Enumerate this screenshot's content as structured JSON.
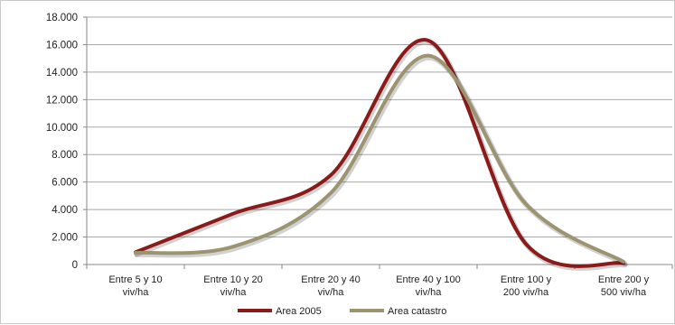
{
  "chart_data": {
    "type": "line",
    "smooth": true,
    "categories": [
      [
        "Entre 5 y 10",
        "viv/ha"
      ],
      [
        "Entre 10 y 20",
        "viv/ha"
      ],
      [
        "Entre 20 y 40",
        "viv/ha"
      ],
      [
        "Entre 40 y 100",
        "viv/ha"
      ],
      [
        "Entre 100 y",
        "200 viv/ha"
      ],
      [
        "Entre 200 y",
        "500 viv/ha"
      ]
    ],
    "series": [
      {
        "name": "Area 2005",
        "color": "#8b1a1a",
        "values": [
          900,
          3700,
          6500,
          16300,
          1500,
          100
        ]
      },
      {
        "name": "Area catastro",
        "color": "#9c9470",
        "values": [
          850,
          1300,
          5200,
          15200,
          4400,
          200
        ]
      }
    ],
    "y_tick_labels": [
      "0",
      "2.000",
      "4.000",
      "6.000",
      "8.000",
      "10.000",
      "12.000",
      "14.000",
      "16.000",
      "18.000"
    ],
    "ylim": [
      0,
      18000
    ],
    "ytick_step": 2000,
    "grid": true,
    "legend_position": "bottom"
  }
}
